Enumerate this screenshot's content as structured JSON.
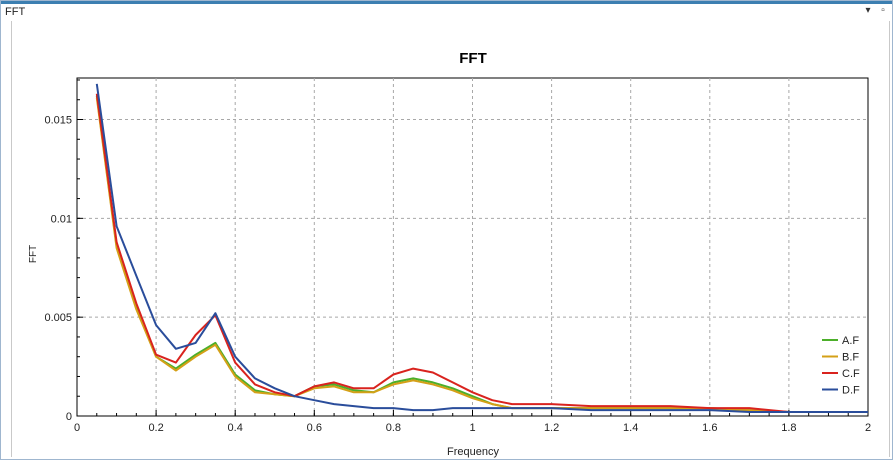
{
  "window": {
    "title": "FFT",
    "dropdown_icon": "dropdown-arrow-icon",
    "restore_icon": "restore-window-icon"
  },
  "chart_data": {
    "type": "line",
    "title": "FFT",
    "xlabel": "Frequency",
    "ylabel": "FFT",
    "xlim": [
      0,
      2
    ],
    "ylim": [
      0,
      0.0171
    ],
    "xticks": [
      0,
      0.2,
      0.4,
      0.6,
      0.8,
      1,
      1.2,
      1.4,
      1.6,
      1.8,
      2
    ],
    "xtick_labels": [
      "0",
      "0.2",
      "0.4",
      "0.6",
      "0.8",
      "1",
      "1.2",
      "1.4",
      "1.6",
      "1.8",
      "2"
    ],
    "yticks": [
      0,
      0.005,
      0.01,
      0.015
    ],
    "ytick_labels": [
      "0",
      "0.005",
      "0.01",
      "0.015"
    ],
    "grid": true,
    "legend_position": "bottom-right",
    "x": [
      0.05,
      0.1,
      0.15,
      0.2,
      0.25,
      0.3,
      0.35,
      0.4,
      0.45,
      0.5,
      0.55,
      0.6,
      0.65,
      0.7,
      0.75,
      0.8,
      0.85,
      0.9,
      0.95,
      1.0,
      1.05,
      1.1,
      1.2,
      1.3,
      1.4,
      1.5,
      1.6,
      1.7,
      1.8,
      1.9,
      2.0
    ],
    "series": [
      {
        "name": "A.F",
        "color": "#4caf2a",
        "values": [
          0.0162,
          0.0086,
          0.0055,
          0.003,
          0.0024,
          0.0031,
          0.0037,
          0.0021,
          0.0013,
          0.0011,
          0.001,
          0.0015,
          0.0016,
          0.0013,
          0.0012,
          0.0017,
          0.0019,
          0.0017,
          0.0014,
          0.001,
          0.0006,
          0.0004,
          0.0004,
          0.0004,
          0.0004,
          0.0004,
          0.0004,
          0.0003,
          0.0002,
          0.0002,
          0.0002
        ]
      },
      {
        "name": "B.F",
        "color": "#d4a017",
        "values": [
          0.0161,
          0.0085,
          0.0054,
          0.003,
          0.0023,
          0.003,
          0.0036,
          0.002,
          0.0012,
          0.0011,
          0.001,
          0.0014,
          0.0015,
          0.0012,
          0.0012,
          0.0016,
          0.0018,
          0.0016,
          0.0013,
          0.0009,
          0.0006,
          0.0004,
          0.0004,
          0.0004,
          0.0004,
          0.0004,
          0.0004,
          0.0003,
          0.0002,
          0.0002,
          0.0002
        ]
      },
      {
        "name": "C.F",
        "color": "#d9231e",
        "values": [
          0.0163,
          0.0088,
          0.0057,
          0.0031,
          0.0027,
          0.0041,
          0.0051,
          0.0027,
          0.0016,
          0.0012,
          0.001,
          0.0015,
          0.0017,
          0.0014,
          0.0014,
          0.0021,
          0.0024,
          0.0022,
          0.0017,
          0.0012,
          0.0008,
          0.0006,
          0.0006,
          0.0005,
          0.0005,
          0.0005,
          0.0004,
          0.0004,
          0.0002,
          0.0002,
          0.0002
        ]
      },
      {
        "name": "D.F",
        "color": "#2a4d9b",
        "values": [
          0.0168,
          0.0096,
          0.0071,
          0.0046,
          0.0034,
          0.0037,
          0.0052,
          0.003,
          0.0019,
          0.0014,
          0.001,
          0.0008,
          0.0006,
          0.0005,
          0.0004,
          0.0004,
          0.0003,
          0.0003,
          0.0004,
          0.0004,
          0.0004,
          0.0004,
          0.0004,
          0.0003,
          0.0003,
          0.0003,
          0.0003,
          0.0002,
          0.0002,
          0.0002,
          0.0002
        ]
      }
    ]
  }
}
